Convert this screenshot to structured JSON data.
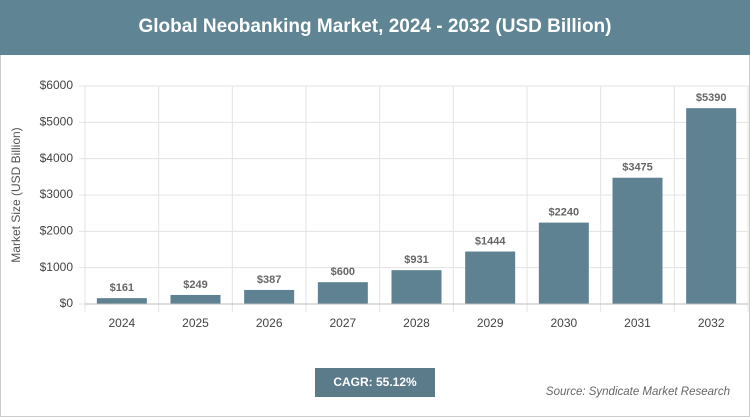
{
  "chart_data": {
    "type": "bar",
    "title": "Global Neobanking Market, 2024 - 2032 (USD Billion)",
    "y_label": "Market Size (USD Billion)",
    "categories": [
      "2024",
      "2025",
      "2026",
      "2027",
      "2028",
      "2029",
      "2030",
      "2031",
      "2032"
    ],
    "values": [
      161,
      249,
      387,
      600,
      931,
      1444,
      2240,
      3475,
      5390
    ],
    "value_labels": [
      "$161",
      "$249",
      "$387",
      "$600",
      "$931",
      "$1444",
      "$2240",
      "$3475",
      "$5390"
    ],
    "color": "#5f8292",
    "ylim": [
      0,
      6000
    ],
    "yticks": [
      {
        "value": 0,
        "label": "$0"
      },
      {
        "value": 1000,
        "label": "$1000"
      },
      {
        "value": 2000,
        "label": "$2000"
      },
      {
        "value": 3000,
        "label": "$3000"
      },
      {
        "value": 4000,
        "label": "$4000"
      },
      {
        "value": 5000,
        "label": "$5000"
      },
      {
        "value": 6000,
        "label": "$6000"
      }
    ],
    "grid": true,
    "cagr": "CAGR: 55.12%",
    "source": "Source: Syndicate Market Research"
  }
}
